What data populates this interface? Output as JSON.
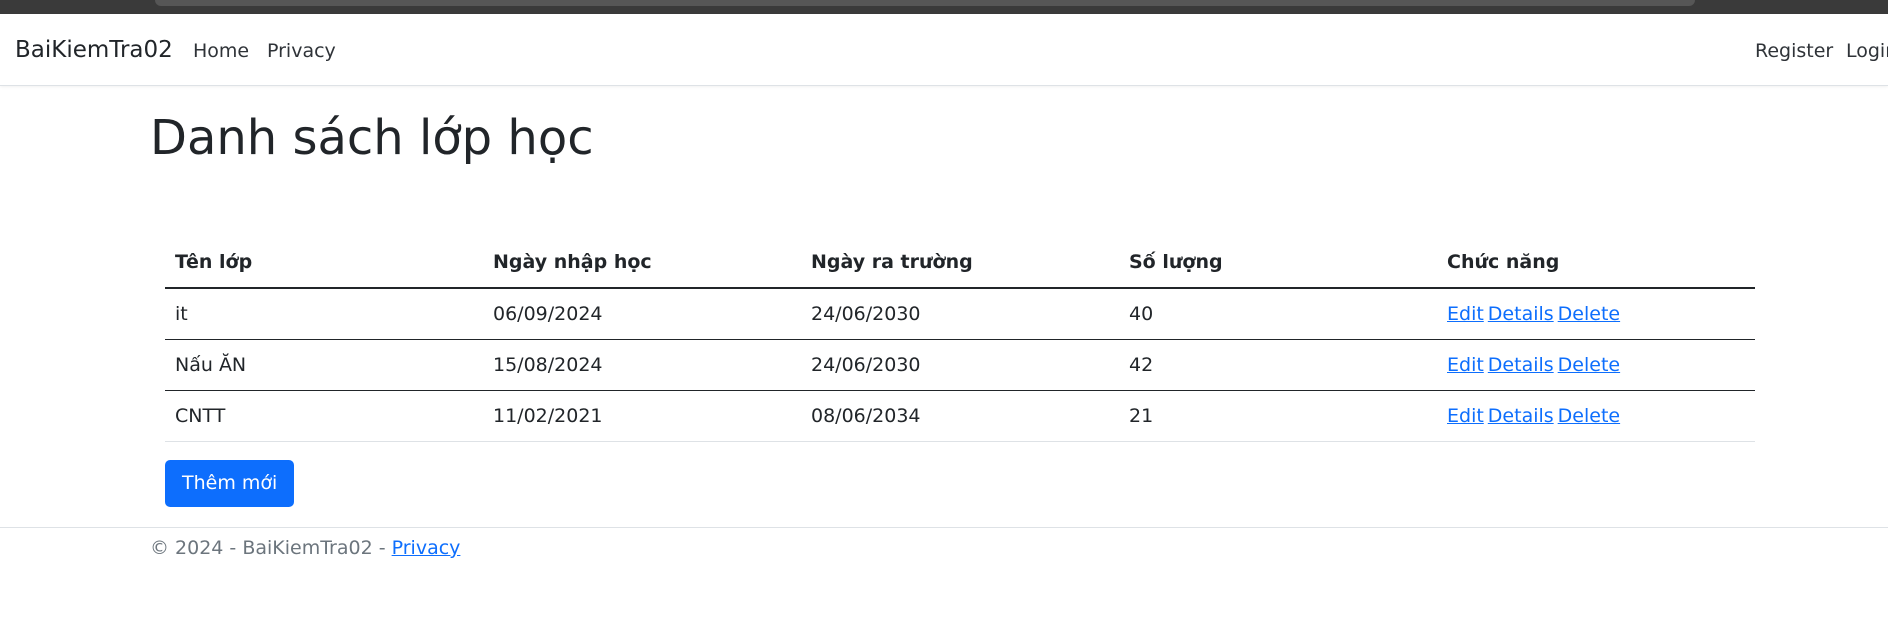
{
  "navbar": {
    "brand": "BaiKiemTra02",
    "links": [
      "Home",
      "Privacy"
    ],
    "right_links": [
      "Register",
      "Login"
    ]
  },
  "page": {
    "title": "Danh sách lớp học"
  },
  "table": {
    "headers": [
      "Tên lớp",
      "Ngày nhập học",
      "Ngày ra trường",
      "Số lượng",
      "Chức năng"
    ],
    "rows": [
      {
        "name": "it",
        "start": "06/09/2024",
        "end": "24/06/2030",
        "count": "40"
      },
      {
        "name": "Nấu ĂN",
        "start": "15/08/2024",
        "end": "24/06/2030",
        "count": "42"
      },
      {
        "name": "CNTT",
        "start": "11/02/2021",
        "end": "08/06/2034",
        "count": "21"
      }
    ],
    "actions": {
      "edit": "Edit",
      "details": "Details",
      "delete": "Delete"
    }
  },
  "add_button": "Thêm mới",
  "footer": {
    "text": "© 2024 - BaiKiemTra02 - ",
    "link": "Privacy"
  }
}
